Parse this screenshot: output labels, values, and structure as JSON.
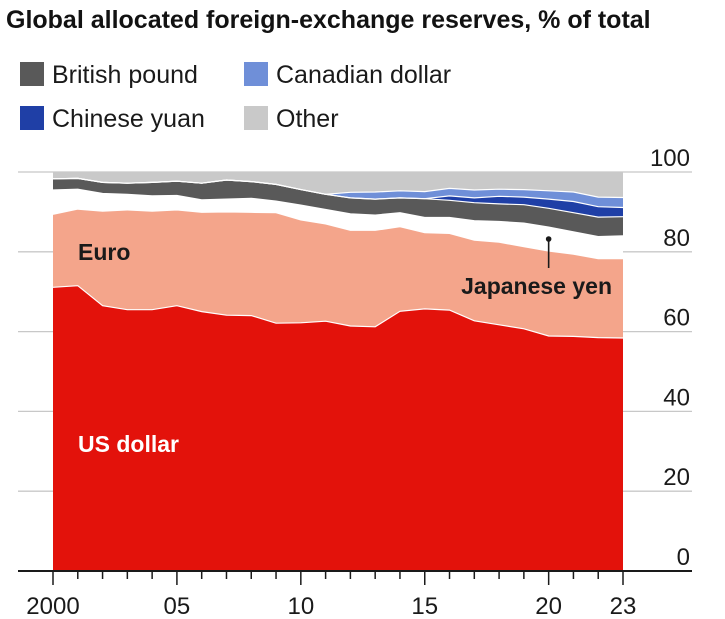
{
  "chart_data": {
    "type": "area",
    "stacked": true,
    "title": "Global allocated foreign-exchange reserves, % of total",
    "xlabel": "",
    "ylabel": "",
    "ylim": [
      0,
      100
    ],
    "xlim": [
      2000,
      2023
    ],
    "yticks": [
      0,
      20,
      40,
      60,
      80,
      100
    ],
    "xticks": [
      {
        "value": 2000,
        "label": "2000"
      },
      {
        "value": 2005,
        "label": "05"
      },
      {
        "value": 2010,
        "label": "10"
      },
      {
        "value": 2015,
        "label": "15"
      },
      {
        "value": 2020,
        "label": "20"
      },
      {
        "value": 2023,
        "label": "23"
      }
    ],
    "x": [
      2000,
      2001,
      2002,
      2003,
      2004,
      2005,
      2006,
      2007,
      2008,
      2009,
      2010,
      2011,
      2012,
      2013,
      2014,
      2015,
      2016,
      2017,
      2018,
      2019,
      2020,
      2021,
      2022,
      2023
    ],
    "series": [
      {
        "name": "US dollar",
        "color": "#e3120b",
        "label": "US dollar",
        "label_color": "#ffffff",
        "values": [
          71.1,
          71.5,
          66.5,
          65.5,
          65.5,
          66.5,
          65.0,
          64.1,
          64.0,
          62.1,
          62.2,
          62.6,
          61.4,
          61.2,
          65.1,
          65.7,
          65.4,
          62.7,
          61.7,
          60.7,
          58.9,
          58.8,
          58.5,
          58.4
        ]
      },
      {
        "name": "Euro",
        "color": "#f4a58b",
        "label": "Euro",
        "label_color": "#1a1a1a",
        "values": [
          18.3,
          19.2,
          23.7,
          25.0,
          24.7,
          24.0,
          24.9,
          25.9,
          25.9,
          27.7,
          25.8,
          24.4,
          24.0,
          24.2,
          21.2,
          19.1,
          19.2,
          20.2,
          20.7,
          20.6,
          21.3,
          20.6,
          19.8,
          19.9
        ]
      },
      {
        "name": "Japanese yen",
        "color": "#ffffff",
        "label": "Japanese yen",
        "label_color": "#1a1a1a",
        "values": [
          6.1,
          5.0,
          4.4,
          3.9,
          3.8,
          3.6,
          3.1,
          3.2,
          3.5,
          2.9,
          3.7,
          3.6,
          4.1,
          3.8,
          3.5,
          3.8,
          4.0,
          4.9,
          5.2,
          5.9,
          6.0,
          5.6,
          5.5,
          5.7
        ]
      },
      {
        "name": "British pound",
        "color": "#595959",
        "label": "British pound",
        "values": [
          2.8,
          2.7,
          2.8,
          2.8,
          3.4,
          3.6,
          4.2,
          4.8,
          4.2,
          4.2,
          3.9,
          3.8,
          4.0,
          4.0,
          3.7,
          4.7,
          4.3,
          4.5,
          4.4,
          4.6,
          4.7,
          4.8,
          4.9,
          4.8
        ]
      },
      {
        "name": "Chinese yuan",
        "color": "#1f3fa6",
        "label": "Chinese yuan",
        "values": [
          0,
          0,
          0,
          0,
          0,
          0,
          0,
          0,
          0,
          0,
          0,
          0,
          0,
          0,
          0,
          0,
          1.1,
          1.2,
          1.9,
          1.9,
          2.3,
          2.8,
          2.6,
          2.3
        ]
      },
      {
        "name": "Canadian dollar",
        "color": "#6f8fd8",
        "label": "Canadian dollar",
        "values": [
          0,
          0,
          0,
          0,
          0,
          0,
          0,
          0,
          0,
          0,
          0,
          0,
          1.4,
          1.8,
          1.8,
          1.8,
          1.9,
          2.0,
          1.8,
          1.9,
          2.1,
          2.4,
          2.4,
          2.5
        ]
      },
      {
        "name": "Other",
        "color": "#c9c9c9",
        "label": "Other",
        "values": [
          1.7,
          1.6,
          2.6,
          2.8,
          2.6,
          2.3,
          2.8,
          2.0,
          2.4,
          3.1,
          4.4,
          5.6,
          5.1,
          5.0,
          4.7,
          4.9,
          4.1,
          4.5,
          4.3,
          4.4,
          4.7,
          5.0,
          6.3,
          6.4
        ]
      }
    ],
    "legend": [
      {
        "name": "British pound",
        "color": "#595959"
      },
      {
        "name": "Canadian dollar",
        "color": "#6f8fd8"
      },
      {
        "name": "Chinese yuan",
        "color": "#1f3fa6"
      },
      {
        "name": "Other",
        "color": "#c9c9c9"
      }
    ],
    "legend_position": "top-left",
    "grid": true,
    "colors": {
      "gridline": "#c8c8c8",
      "axis": "#1a1a1a",
      "separator": "#ffffff"
    }
  }
}
